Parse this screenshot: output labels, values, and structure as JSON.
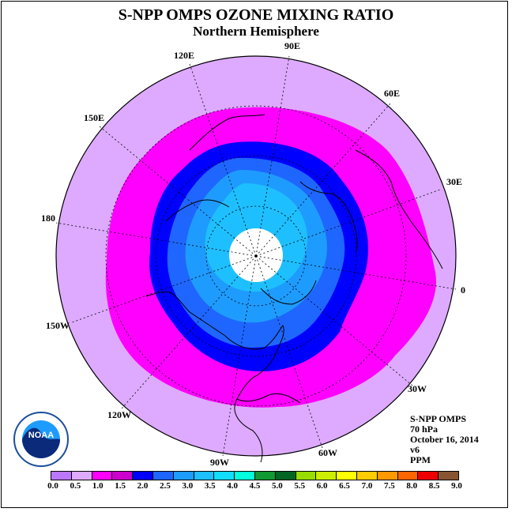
{
  "header": {
    "title": "S-NPP OMPS OZONE MIXING RATIO",
    "subtitle": "Northern Hemisphere"
  },
  "longitude_labels": {
    "e90": "90E",
    "e120": "120E",
    "e60": "60E",
    "e150": "150E",
    "e30": "30E",
    "l180": "180",
    "l0": "0",
    "w150": "150W",
    "w30": "30W",
    "w120": "120W",
    "w60": "60W",
    "w90": "90W"
  },
  "info": {
    "instrument": "S-NPP OMPS",
    "level": "70 hPa",
    "date": "October 16, 2014",
    "version": "v6",
    "units": "PPM"
  },
  "colorbar": {
    "colors": [
      "#bb77ff",
      "#ddaaff",
      "#ff00ff",
      "#cc00cc",
      "#0000ff",
      "#1e66ff",
      "#1e9bff",
      "#1ebfff",
      "#11ddff",
      "#00ffdd",
      "#119933",
      "#006622",
      "#99dd00",
      "#ccee00",
      "#ffff00",
      "#ffcc00",
      "#ff9900",
      "#ff6600",
      "#ee0000",
      "#885533"
    ],
    "ticks": [
      "0.0",
      "0.5",
      "1.0",
      "1.5",
      "2.0",
      "2.5",
      "3.0",
      "3.5",
      "4.0",
      "4.5",
      "5.0",
      "5.5",
      "6.0",
      "6.5",
      "7.0",
      "7.5",
      "8.0",
      "8.5",
      "9.0"
    ]
  },
  "map_colors": {
    "outer": "#ddaaff",
    "band_magenta": "#ff00ff",
    "band_blue": "#0000ff",
    "band_mid": "#1e66ff",
    "band_light": "#1e9bff",
    "band_cyan": "#1ebfff",
    "pole": "#ffffff"
  },
  "logo": {
    "text": "NOAA"
  }
}
